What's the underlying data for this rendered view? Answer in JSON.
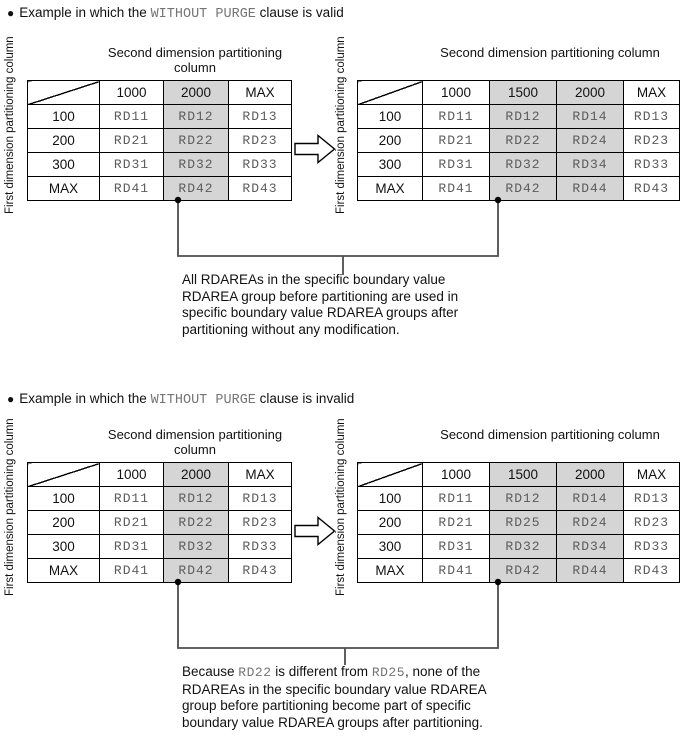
{
  "labels": {
    "bullet": "●",
    "first_dimension": "First dimension partitioning column",
    "second_dimension": "Second dimension partitioning column"
  },
  "colors": {
    "shaded_cell": "#d5d5d5",
    "cell_text": "#5c5c5c",
    "code_text": "#757575",
    "connector": "#4d4d4d",
    "border": "#000000"
  },
  "examples": [
    {
      "id": "valid",
      "title": [
        {
          "t": "Example in which the "
        },
        {
          "c": "WITHOUT PURGE"
        },
        {
          "t": " clause is valid"
        }
      ],
      "before_table": {
        "col_headers": [
          "1000",
          "2000",
          "MAX"
        ],
        "shaded_cols": [
          1
        ],
        "rows": [
          {
            "label": "100",
            "cells": [
              "RD11",
              "RD12",
              "RD13"
            ]
          },
          {
            "label": "200",
            "cells": [
              "RD21",
              "RD22",
              "RD23"
            ]
          },
          {
            "label": "300",
            "cells": [
              "RD31",
              "RD32",
              "RD33"
            ]
          },
          {
            "label": "MAX",
            "cells": [
              "RD41",
              "RD42",
              "RD43"
            ]
          }
        ]
      },
      "after_table": {
        "col_headers": [
          "1000",
          "1500",
          "2000",
          "MAX"
        ],
        "shaded_cols": [
          1,
          2
        ],
        "rows": [
          {
            "label": "100",
            "cells": [
              "RD11",
              "RD12",
              "RD14",
              "RD13"
            ]
          },
          {
            "label": "200",
            "cells": [
              "RD21",
              "RD22",
              "RD24",
              "RD23"
            ]
          },
          {
            "label": "300",
            "cells": [
              "RD31",
              "RD32",
              "RD34",
              "RD33"
            ]
          },
          {
            "label": "MAX",
            "cells": [
              "RD41",
              "RD42",
              "RD44",
              "RD43"
            ]
          }
        ]
      },
      "caption_lines": [
        [
          {
            "t": "All RDAREAs in the specific boundary value"
          }
        ],
        [
          {
            "t": "RDAREA group before partitioning are used in"
          }
        ],
        [
          {
            "t": "specific boundary value RDAREA groups after"
          }
        ],
        [
          {
            "t": "partitioning without any modification."
          }
        ]
      ]
    },
    {
      "id": "invalid",
      "title": [
        {
          "t": "Example in which the "
        },
        {
          "c": "WITHOUT PURGE"
        },
        {
          "t": " clause is invalid"
        }
      ],
      "before_table": {
        "col_headers": [
          "1000",
          "2000",
          "MAX"
        ],
        "shaded_cols": [
          1
        ],
        "rows": [
          {
            "label": "100",
            "cells": [
              "RD11",
              "RD12",
              "RD13"
            ]
          },
          {
            "label": "200",
            "cells": [
              "RD21",
              "RD22",
              "RD23"
            ]
          },
          {
            "label": "300",
            "cells": [
              "RD31",
              "RD32",
              "RD33"
            ]
          },
          {
            "label": "MAX",
            "cells": [
              "RD41",
              "RD42",
              "RD43"
            ]
          }
        ]
      },
      "after_table": {
        "col_headers": [
          "1000",
          "1500",
          "2000",
          "MAX"
        ],
        "shaded_cols": [
          1,
          2
        ],
        "rows": [
          {
            "label": "100",
            "cells": [
              "RD11",
              "RD12",
              "RD14",
              "RD13"
            ]
          },
          {
            "label": "200",
            "cells": [
              "RD21",
              "RD25",
              "RD24",
              "RD23"
            ]
          },
          {
            "label": "300",
            "cells": [
              "RD31",
              "RD32",
              "RD34",
              "RD33"
            ]
          },
          {
            "label": "MAX",
            "cells": [
              "RD41",
              "RD42",
              "RD44",
              "RD43"
            ]
          }
        ]
      },
      "caption_lines": [
        [
          {
            "t": "Because "
          },
          {
            "c": "RD22"
          },
          {
            "t": " is different from "
          },
          {
            "c": "RD25"
          },
          {
            "t": ", none of the"
          }
        ],
        [
          {
            "t": "RDAREAs in the specific boundary value RDAREA"
          }
        ],
        [
          {
            "t": "group before partitioning become part of specific"
          }
        ],
        [
          {
            "t": "boundary value RDAREA groups after partitioning."
          }
        ]
      ]
    }
  ]
}
